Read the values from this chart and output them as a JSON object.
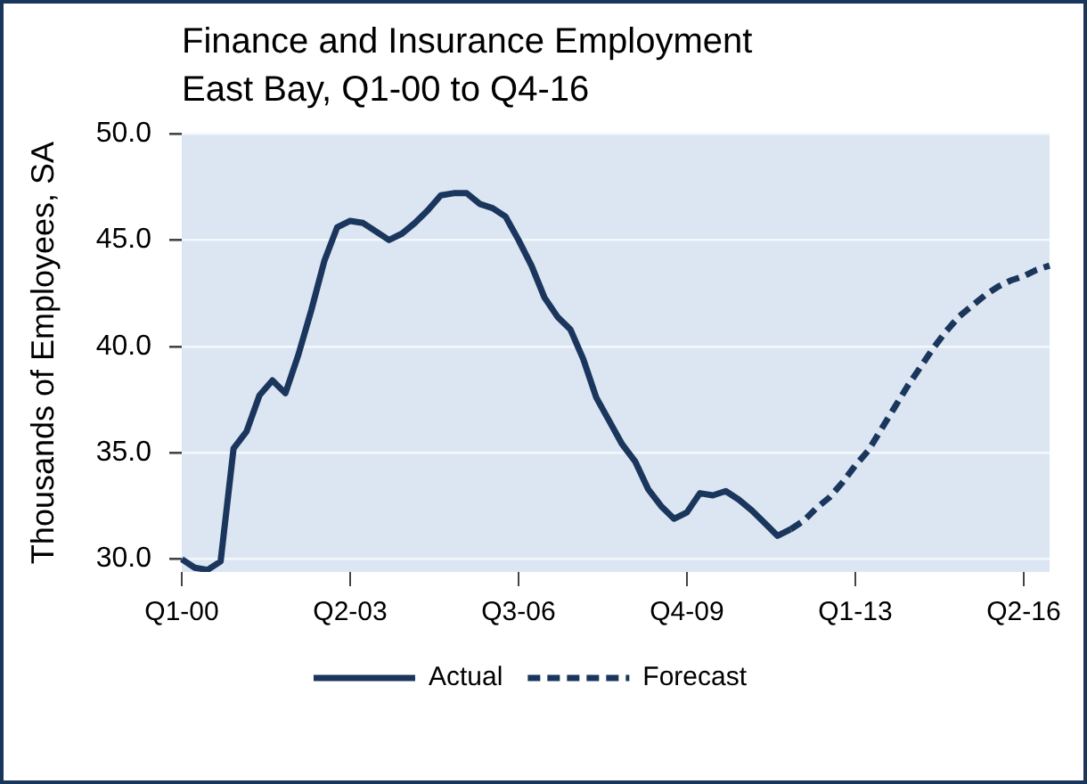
{
  "chart_data": {
    "type": "line",
    "title": "Finance and Insurance Employment",
    "subtitle": "East Bay, Q1-00 to Q4-16",
    "ylabel": "Thousands of Employees, SA",
    "categories": [
      "Q1-00",
      null,
      null,
      null,
      null,
      null,
      null,
      null,
      null,
      null,
      null,
      null,
      null,
      "Q2-03",
      null,
      null,
      null,
      null,
      null,
      null,
      null,
      null,
      null,
      null,
      null,
      null,
      "Q3-06",
      null,
      null,
      null,
      null,
      null,
      null,
      null,
      null,
      null,
      null,
      null,
      null,
      "Q4-09",
      null,
      null,
      null,
      null,
      null,
      null,
      null,
      null,
      null,
      null,
      null,
      null,
      "Q1-13",
      null,
      null,
      null,
      null,
      null,
      null,
      null,
      null,
      null,
      null,
      null,
      null,
      "Q2-16",
      null,
      null
    ],
    "series": [
      {
        "name": "Actual",
        "color": "#1b365d",
        "line_style": "solid",
        "values": [
          30.0,
          29.6,
          29.5,
          29.9,
          35.2,
          36.0,
          37.7,
          38.4,
          37.8,
          39.6,
          41.7,
          44.0,
          45.6,
          45.9,
          45.8,
          45.4,
          45.0,
          45.3,
          45.8,
          46.4,
          47.1,
          47.2,
          47.2,
          46.7,
          46.5,
          46.1,
          45.0,
          43.8,
          42.3,
          41.4,
          40.8,
          39.4,
          37.6,
          36.5,
          35.4,
          34.6,
          33.3,
          32.5,
          31.9,
          32.2,
          33.1,
          33.0,
          33.2,
          32.8,
          32.3,
          31.7,
          31.1,
          31.4,
          null,
          null,
          null,
          null,
          null,
          null,
          null,
          null,
          null,
          null,
          null,
          null,
          null,
          null,
          null,
          null,
          null,
          null,
          null,
          null
        ]
      },
      {
        "name": "Forecast",
        "color": "#1b365d",
        "line_style": "dashed",
        "values": [
          null,
          null,
          null,
          null,
          null,
          null,
          null,
          null,
          null,
          null,
          null,
          null,
          null,
          null,
          null,
          null,
          null,
          null,
          null,
          null,
          null,
          null,
          null,
          null,
          null,
          null,
          null,
          null,
          null,
          null,
          null,
          null,
          null,
          null,
          null,
          null,
          null,
          null,
          null,
          null,
          null,
          null,
          null,
          null,
          null,
          null,
          null,
          31.4,
          31.8,
          32.4,
          32.9,
          33.6,
          34.4,
          35.1,
          36.1,
          37.1,
          38.1,
          39.0,
          39.9,
          40.7,
          41.4,
          41.9,
          42.4,
          42.8,
          43.1,
          43.3,
          43.6,
          43.8
        ]
      }
    ],
    "ylim": [
      29.4,
      50
    ],
    "yticks": [
      {
        "value": 30,
        "label": "30.0"
      },
      {
        "value": 35,
        "label": "35.0"
      },
      {
        "value": 40,
        "label": "40.0"
      },
      {
        "value": 45,
        "label": "45.0"
      },
      {
        "value": 50,
        "label": "50.0"
      }
    ],
    "grid": "y",
    "legend": "bottom",
    "marker": "none"
  }
}
